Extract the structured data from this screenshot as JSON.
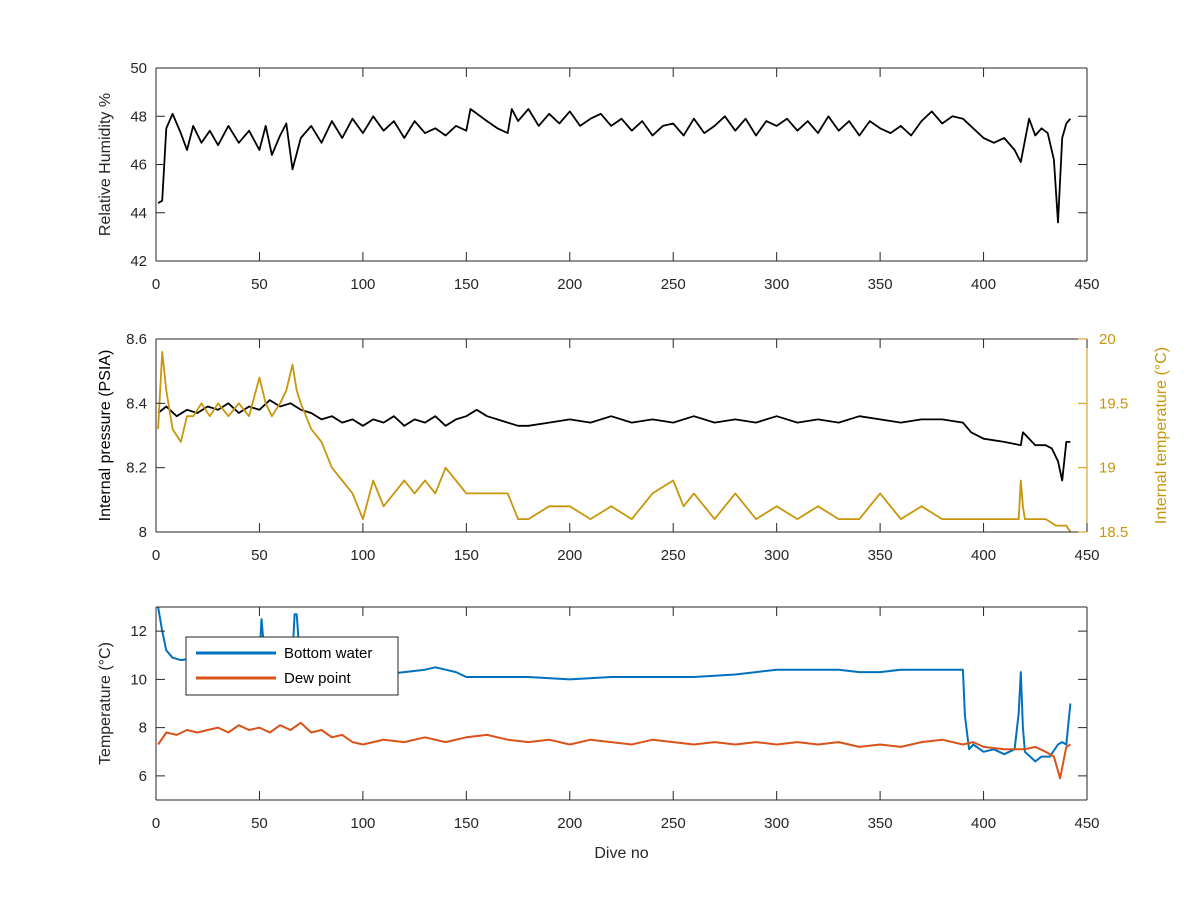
{
  "chart_data": [
    {
      "type": "line",
      "title": "",
      "xlabel": "",
      "ylabel": "Relative Humidity %",
      "xlim": [
        0,
        450
      ],
      "ylim": [
        42,
        50
      ],
      "xticks": [
        0,
        50,
        100,
        150,
        200,
        250,
        300,
        350,
        400,
        450
      ],
      "yticks": [
        42,
        44,
        46,
        48,
        50
      ],
      "grid": false,
      "series": [
        {
          "color": "#000000",
          "x": [
            1,
            3,
            5,
            8,
            12,
            15,
            18,
            22,
            26,
            30,
            35,
            40,
            45,
            50,
            53,
            56,
            60,
            63,
            66,
            70,
            75,
            80,
            85,
            90,
            95,
            100,
            105,
            110,
            115,
            120,
            125,
            130,
            135,
            140,
            145,
            150,
            152,
            160,
            165,
            170,
            172,
            175,
            180,
            185,
            190,
            195,
            200,
            205,
            210,
            215,
            220,
            225,
            230,
            235,
            240,
            245,
            250,
            255,
            260,
            265,
            270,
            275,
            280,
            285,
            290,
            295,
            300,
            305,
            310,
            315,
            320,
            325,
            330,
            335,
            340,
            345,
            350,
            355,
            360,
            365,
            370,
            375,
            380,
            385,
            390,
            395,
            400,
            405,
            410,
            415,
            418,
            422,
            425,
            428,
            431,
            434,
            436,
            438,
            440,
            442
          ],
          "y": [
            44.4,
            44.5,
            47.5,
            48.1,
            47.3,
            46.6,
            47.6,
            46.9,
            47.4,
            46.8,
            47.6,
            46.9,
            47.4,
            46.6,
            47.6,
            46.4,
            47.2,
            47.7,
            45.8,
            47.1,
            47.6,
            46.9,
            47.8,
            47.1,
            47.9,
            47.3,
            48.0,
            47.4,
            47.8,
            47.1,
            47.8,
            47.3,
            47.5,
            47.2,
            47.6,
            47.4,
            48.3,
            47.8,
            47.5,
            47.3,
            48.3,
            47.8,
            48.3,
            47.6,
            48.1,
            47.7,
            48.2,
            47.6,
            47.9,
            48.1,
            47.6,
            47.9,
            47.4,
            47.8,
            47.2,
            47.6,
            47.7,
            47.2,
            47.9,
            47.3,
            47.6,
            48.0,
            47.4,
            47.9,
            47.2,
            47.8,
            47.6,
            47.9,
            47.4,
            47.8,
            47.3,
            48.0,
            47.4,
            47.8,
            47.2,
            47.8,
            47.5,
            47.3,
            47.6,
            47.2,
            47.8,
            48.2,
            47.7,
            48.0,
            47.9,
            47.5,
            47.1,
            46.9,
            47.1,
            46.6,
            46.1,
            47.9,
            47.2,
            47.5,
            47.3,
            46.2,
            43.6,
            47.1,
            47.7,
            47.9
          ]
        }
      ]
    },
    {
      "type": "line",
      "title": "",
      "xlabel": "",
      "ylabel": "Internal pressure (PSIA)",
      "ylabel_right": "Internal temperature (°C)",
      "xlim": [
        0,
        450
      ],
      "ylim": [
        8,
        8.6
      ],
      "ylim_right": [
        18.5,
        20
      ],
      "xticks": [
        0,
        50,
        100,
        150,
        200,
        250,
        300,
        350,
        400,
        450
      ],
      "yticks": [
        8,
        8.2,
        8.4,
        8.6
      ],
      "yticks_right": [
        18.5,
        19,
        19.5,
        20
      ],
      "grid": false,
      "series": [
        {
          "axis": "left",
          "color": "#000000",
          "x": [
            1,
            5,
            10,
            15,
            20,
            25,
            30,
            35,
            40,
            45,
            50,
            55,
            60,
            65,
            70,
            75,
            80,
            85,
            90,
            95,
            100,
            105,
            110,
            115,
            120,
            125,
            130,
            135,
            140,
            145,
            150,
            155,
            160,
            165,
            170,
            175,
            180,
            190,
            200,
            210,
            220,
            230,
            240,
            250,
            260,
            270,
            280,
            290,
            300,
            310,
            320,
            330,
            340,
            350,
            360,
            370,
            380,
            390,
            394,
            400,
            410,
            418,
            419,
            425,
            430,
            433,
            436,
            438,
            440,
            442
          ],
          "y": [
            8.37,
            8.39,
            8.36,
            8.38,
            8.37,
            8.39,
            8.38,
            8.4,
            8.37,
            8.39,
            8.38,
            8.41,
            8.39,
            8.4,
            8.38,
            8.37,
            8.35,
            8.36,
            8.34,
            8.35,
            8.33,
            8.35,
            8.34,
            8.36,
            8.33,
            8.35,
            8.34,
            8.36,
            8.33,
            8.35,
            8.36,
            8.38,
            8.36,
            8.35,
            8.34,
            8.33,
            8.33,
            8.34,
            8.35,
            8.34,
            8.36,
            8.34,
            8.35,
            8.34,
            8.36,
            8.34,
            8.35,
            8.34,
            8.36,
            8.34,
            8.35,
            8.34,
            8.36,
            8.35,
            8.34,
            8.35,
            8.35,
            8.34,
            8.31,
            8.29,
            8.28,
            8.27,
            8.31,
            8.27,
            8.27,
            8.26,
            8.22,
            8.16,
            8.28,
            8.28
          ]
        },
        {
          "axis": "right",
          "color": "#c8960a",
          "x": [
            1,
            3,
            5,
            8,
            12,
            15,
            18,
            22,
            26,
            30,
            35,
            40,
            45,
            50,
            53,
            56,
            60,
            63,
            66,
            68,
            70,
            75,
            80,
            85,
            90,
            95,
            100,
            105,
            110,
            115,
            120,
            125,
            130,
            135,
            140,
            145,
            150,
            155,
            160,
            165,
            170,
            175,
            180,
            190,
            200,
            210,
            220,
            230,
            240,
            250,
            255,
            260,
            270,
            280,
            290,
            300,
            310,
            320,
            330,
            340,
            350,
            360,
            370,
            380,
            390,
            400,
            410,
            417,
            418,
            419,
            420,
            425,
            430,
            435,
            440,
            442
          ],
          "y": [
            19.3,
            19.9,
            19.6,
            19.3,
            19.2,
            19.4,
            19.4,
            19.5,
            19.4,
            19.5,
            19.4,
            19.5,
            19.4,
            19.7,
            19.5,
            19.4,
            19.5,
            19.6,
            19.8,
            19.6,
            19.5,
            19.3,
            19.2,
            19.0,
            18.9,
            18.8,
            18.6,
            18.9,
            18.7,
            18.8,
            18.9,
            18.8,
            18.9,
            18.8,
            19.0,
            18.9,
            18.8,
            18.8,
            18.8,
            18.8,
            18.8,
            18.6,
            18.6,
            18.7,
            18.7,
            18.6,
            18.7,
            18.6,
            18.8,
            18.9,
            18.7,
            18.8,
            18.6,
            18.8,
            18.6,
            18.7,
            18.6,
            18.7,
            18.6,
            18.6,
            18.8,
            18.6,
            18.7,
            18.6,
            18.6,
            18.6,
            18.6,
            18.6,
            18.9,
            18.7,
            18.6,
            18.6,
            18.6,
            18.55,
            18.55,
            18.5
          ]
        }
      ]
    },
    {
      "type": "line",
      "title": "",
      "xlabel": "Dive no",
      "ylabel": "Temperature (°C)",
      "xlim": [
        0,
        450
      ],
      "ylim": [
        5,
        13
      ],
      "xticks": [
        0,
        50,
        100,
        150,
        200,
        250,
        300,
        350,
        400,
        450
      ],
      "yticks": [
        6,
        8,
        10,
        12
      ],
      "grid": false,
      "legend": "top-left",
      "series": [
        {
          "name": "Bottom water",
          "color": "#0072bd",
          "x": [
            1,
            3,
            5,
            8,
            12,
            20,
            30,
            40,
            45,
            50,
            51,
            52,
            53,
            60,
            66,
            67,
            68,
            69,
            70,
            80,
            90,
            100,
            110,
            120,
            130,
            135,
            140,
            145,
            150,
            160,
            180,
            200,
            220,
            240,
            260,
            280,
            290,
            300,
            310,
            320,
            330,
            340,
            350,
            360,
            380,
            390,
            391,
            393,
            395,
            400,
            405,
            410,
            415,
            417,
            418,
            419,
            420,
            425,
            428,
            432,
            436,
            438,
            440,
            442
          ],
          "y": [
            13,
            12,
            11.2,
            10.9,
            10.8,
            10.9,
            10.9,
            10.9,
            10.9,
            10.9,
            12.5,
            11.5,
            10.9,
            10.9,
            11.0,
            12.7,
            12.7,
            11.5,
            11.0,
            10.4,
            10.2,
            10.1,
            10.2,
            10.3,
            10.4,
            10.5,
            10.4,
            10.3,
            10.1,
            10.1,
            10.1,
            10.0,
            10.1,
            10.1,
            10.1,
            10.2,
            10.3,
            10.4,
            10.4,
            10.4,
            10.4,
            10.3,
            10.3,
            10.4,
            10.4,
            10.4,
            8.5,
            7.1,
            7.3,
            7.0,
            7.1,
            6.9,
            7.1,
            8.6,
            10.3,
            8.0,
            7.0,
            6.6,
            6.8,
            6.8,
            7.3,
            7.4,
            7.3,
            9.0
          ]
        },
        {
          "name": "Dew point",
          "color": "#d95319",
          "x": [
            1,
            5,
            10,
            15,
            20,
            25,
            30,
            35,
            40,
            45,
            50,
            55,
            60,
            65,
            70,
            75,
            80,
            85,
            90,
            95,
            100,
            110,
            120,
            130,
            140,
            150,
            160,
            170,
            180,
            190,
            200,
            210,
            220,
            230,
            240,
            250,
            260,
            270,
            280,
            290,
            300,
            310,
            320,
            330,
            340,
            350,
            360,
            370,
            380,
            390,
            395,
            400,
            410,
            420,
            425,
            430,
            434,
            437,
            440,
            442
          ],
          "y": [
            7.3,
            7.8,
            7.7,
            7.9,
            7.8,
            7.9,
            8.0,
            7.8,
            8.1,
            7.9,
            8.0,
            7.8,
            8.1,
            7.9,
            8.2,
            7.8,
            7.9,
            7.6,
            7.7,
            7.4,
            7.3,
            7.5,
            7.4,
            7.6,
            7.4,
            7.6,
            7.7,
            7.5,
            7.4,
            7.5,
            7.3,
            7.5,
            7.4,
            7.3,
            7.5,
            7.4,
            7.3,
            7.4,
            7.3,
            7.4,
            7.3,
            7.4,
            7.3,
            7.4,
            7.2,
            7.3,
            7.2,
            7.4,
            7.5,
            7.3,
            7.4,
            7.2,
            7.1,
            7.1,
            7.2,
            7.0,
            6.8,
            5.9,
            7.2,
            7.3
          ]
        }
      ]
    }
  ]
}
